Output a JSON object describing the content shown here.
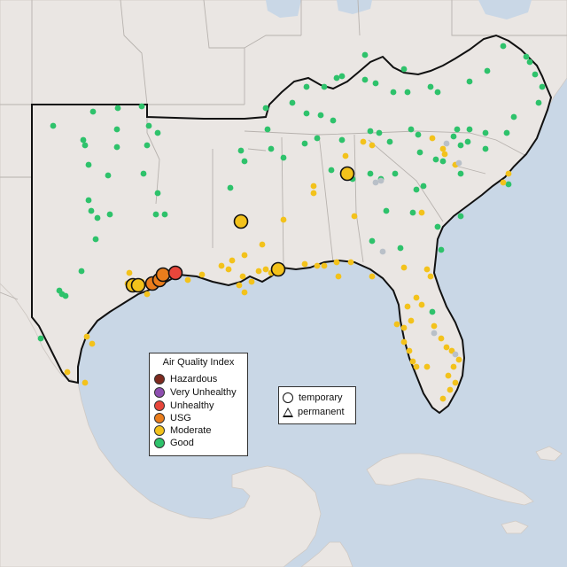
{
  "legend_aqi": {
    "title": "Air Quality Index",
    "items": [
      {
        "label": "Hazardous",
        "color": "#7e2a1e"
      },
      {
        "label": "Very Unhealthy",
        "color": "#8e4fb0"
      },
      {
        "label": "Unhealthy",
        "color": "#e8463b"
      },
      {
        "label": "USG",
        "color": "#ea7d1c"
      },
      {
        "label": "Moderate",
        "color": "#f3c21b"
      },
      {
        "label": "Good",
        "color": "#2ec26b"
      }
    ]
  },
  "legend_monitor": {
    "items": [
      {
        "label": "temporary",
        "shape": "circle"
      },
      {
        "label": "permanent",
        "shape": "triangle"
      }
    ]
  },
  "colors": {
    "water": "#c9d7e6",
    "land": "#eae6e3",
    "region_outline": "#111111",
    "border": "#b7b2ae",
    "no_data": "#b9c0c8"
  }
}
